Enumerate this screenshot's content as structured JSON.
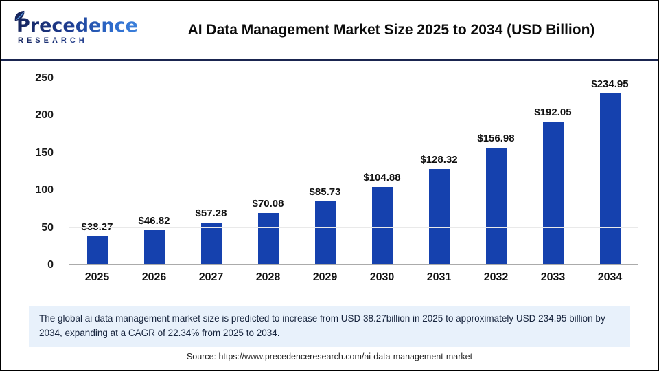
{
  "header": {
    "logo_line1": "Precedence",
    "logo_line2": "RESEARCH",
    "title": "AI Data Management Market Size 2025 to 2034 (USD Billion)"
  },
  "chart_data": {
    "type": "bar",
    "title": "AI Data Management Market Size 2025 to 2034 (USD Billion)",
    "categories": [
      "2025",
      "2026",
      "2027",
      "2028",
      "2029",
      "2030",
      "2031",
      "2032",
      "2033",
      "2034"
    ],
    "values": [
      38.27,
      46.82,
      57.28,
      70.08,
      85.73,
      104.88,
      128.32,
      156.98,
      192.05,
      234.95
    ],
    "labels": [
      "$38.27",
      "$46.82",
      "$57.28",
      "$70.08",
      "$85.73",
      "$104.88",
      "$128.32",
      "$156.98",
      "$192.05",
      "$234.95"
    ],
    "xlabel": "",
    "ylabel": "",
    "ylim": [
      0,
      250
    ],
    "yticks": [
      0,
      50,
      100,
      150,
      200,
      250
    ],
    "grid": true,
    "legend": "none",
    "bar_color": "#1541ae"
  },
  "footer": {
    "summary": "The global ai data management market size is predicted to increase from USD 38.27billion in 2025 to approximately USD 234.95 billion by 2034, expanding at a CAGR of 22.34% from 2025 to 2034.",
    "source": "Source: https://www.precedenceresearch.com/ai-data-management-market"
  },
  "colors": {
    "bar": "#1541ae",
    "divider": "#1a2550",
    "summary_bg": "#e8f1fb",
    "gridline": "#e9e9e9",
    "baseline": "#ababab",
    "logo_dark": "#17265e",
    "logo_light": "#2f6fd0"
  }
}
